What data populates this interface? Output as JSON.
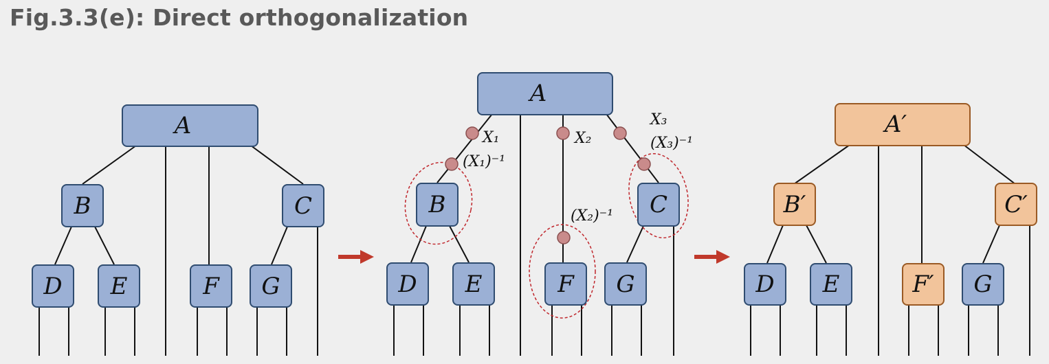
{
  "title": "Fig.3.3(e): Direct orthogonalization",
  "colors": {
    "node_fill": "#9bb0d5",
    "node_border": "#2f4c70",
    "updated_node_fill": "#f2c49b",
    "updated_node_border": "#9a5a24",
    "gate_fill": "#c98b8b",
    "highlight_ring": "#c0262c",
    "arrow": "#c0392b"
  },
  "panels": [
    {
      "id": "left",
      "nodes": {
        "A": "A",
        "B": "B",
        "C": "C",
        "D": "D",
        "E": "E",
        "F": "F",
        "G": "G"
      }
    },
    {
      "id": "middle",
      "nodes": {
        "A": "A",
        "B": "B",
        "C": "C",
        "D": "D",
        "E": "E",
        "F": "F",
        "G": "G"
      },
      "gate_labels": {
        "x1": "X₁",
        "x1inv": "(X₁)⁻¹",
        "x2": "X₂",
        "x2inv": "(X₂)⁻¹",
        "x3": "X₃",
        "x3inv": "(X₃)⁻¹"
      }
    },
    {
      "id": "right",
      "nodes": {
        "A": "A′",
        "B": "B′",
        "C": "C′",
        "D": "D",
        "E": "E",
        "F": "F′",
        "G": "G"
      }
    }
  ],
  "arrows": [
    "transform-arrow",
    "transform-arrow"
  ]
}
